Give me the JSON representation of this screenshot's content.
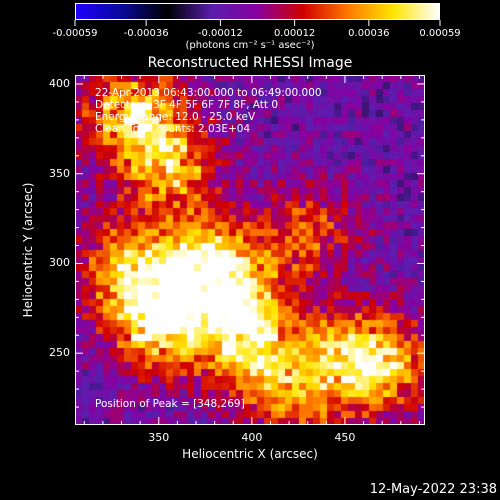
{
  "colorbar": {
    "ticks": [
      "-0.00059",
      "-0.00036",
      "-0.00012",
      "0.00012",
      "0.00036",
      "0.00059"
    ],
    "tick_values": [
      -0.00059,
      -0.00036,
      -0.00012,
      0.00012,
      0.00036,
      0.00059
    ],
    "unit": "(photons cm⁻² s⁻¹ asec⁻²)",
    "colors": [
      "#1f00ff",
      "#0a0a9a",
      "#000000",
      "#5a1fb0",
      "#8a00a0",
      "#d10000",
      "#ff7a00",
      "#ffe600",
      "#ffffff"
    ]
  },
  "chart_data": {
    "type": "heatmap",
    "title": "Reconstructed RHESSI Image",
    "xlabel": "Heliocentric X (arcsec)",
    "ylabel": "Heliocentric Y (arcsec)",
    "xlim": [
      305,
      493
    ],
    "ylim": [
      210,
      405
    ],
    "xticks": [
      350,
      400,
      450
    ],
    "yticks": [
      250,
      300,
      350,
      400
    ],
    "value_range": [
      -0.00059,
      0.00059
    ],
    "peak": [
      348,
      269
    ],
    "bright_regions": [
      {
        "x": 335,
        "y": 385,
        "value": 0.00055
      },
      {
        "x": 355,
        "y": 355,
        "value": 0.00045
      },
      {
        "x": 330,
        "y": 300,
        "value": 0.00042
      },
      {
        "x": 348,
        "y": 269,
        "value": 0.00059
      },
      {
        "x": 385,
        "y": 300,
        "value": 0.0004
      },
      {
        "x": 395,
        "y": 270,
        "value": 0.00038
      },
      {
        "x": 400,
        "y": 250,
        "value": 0.00035
      },
      {
        "x": 430,
        "y": 320,
        "value": 0.0003
      },
      {
        "x": 450,
        "y": 250,
        "value": 0.00042
      },
      {
        "x": 470,
        "y": 245,
        "value": 0.0004
      },
      {
        "x": 420,
        "y": 225,
        "value": 0.0003
      },
      {
        "x": 365,
        "y": 295,
        "value": 0.00045
      }
    ]
  },
  "axes": {
    "xticks": [
      "350",
      "400",
      "450"
    ],
    "yticks": [
      "250",
      "300",
      "350",
      "400"
    ]
  },
  "info": {
    "line1": "22-Apr-2013 06:43:00.000 to 06:49:00.000",
    "line2": "Detectors: 3F 4F 5F 6F 7F 8F, Att 0",
    "line3": "Energy Range: 12.0 - 25.0 keV",
    "line4": "Clean     Total counts: 2.03E+04"
  },
  "peak_text": "Position of Peak = [348,269]",
  "timestamp": "12-May-2022 23:38"
}
